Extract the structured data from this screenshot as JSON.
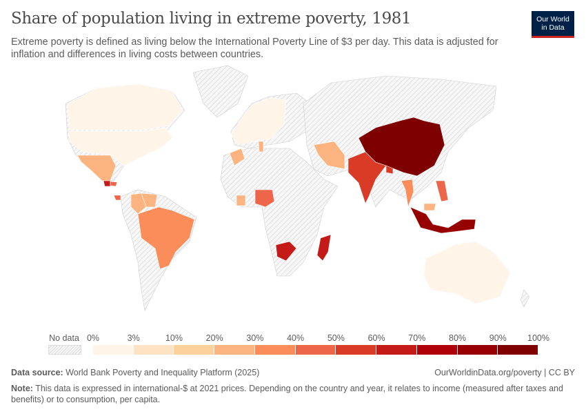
{
  "header": {
    "title": "Share of population living in extreme poverty, 1981",
    "subtitle": "Extreme poverty is defined as living below the International Poverty Line of $3 per day. This data is adjusted for inflation and differences in living costs between countries.",
    "logo_line1": "Our World",
    "logo_line2": "in Data"
  },
  "chart_data": {
    "type": "choropleth",
    "title": "Share of population living in extreme poverty, 1981",
    "legend": {
      "no_data_label": "No data",
      "bin_labels": [
        "0%",
        "3%",
        "10%",
        "20%",
        "30%",
        "40%",
        "50%",
        "60%",
        "70%",
        "80%",
        "90%",
        "100%"
      ],
      "bin_colors": [
        "#fef4e8",
        "#fde3c4",
        "#fcd19c",
        "#fbb47f",
        "#fb8d5a",
        "#ed6649",
        "#d93b27",
        "#c41b19",
        "#b00008",
        "#970000",
        "#7e0000"
      ],
      "no_data_pattern": "hatched-grey"
    },
    "countries": [
      {
        "name": "United States",
        "bin": "0-3%"
      },
      {
        "name": "Canada",
        "bin": "0-3%"
      },
      {
        "name": "Mexico",
        "bin": "20-30%"
      },
      {
        "name": "Guatemala",
        "bin": "60-70%"
      },
      {
        "name": "Honduras",
        "bin": "40-50%"
      },
      {
        "name": "Costa Rica",
        "bin": "40-50%"
      },
      {
        "name": "Colombia",
        "bin": "20-30%"
      },
      {
        "name": "Venezuela",
        "bin": "20-30%"
      },
      {
        "name": "Brazil",
        "bin": "30-40%"
      },
      {
        "name": "Western Europe",
        "bin": "0-3%"
      },
      {
        "name": "Morocco",
        "bin": "20-30%"
      },
      {
        "name": "Tunisia",
        "bin": "20-30%"
      },
      {
        "name": "Côte d'Ivoire",
        "bin": "20-30%"
      },
      {
        "name": "Nigeria",
        "bin": "40-50%"
      },
      {
        "name": "Botswana",
        "bin": "60-70%"
      },
      {
        "name": "Madagascar",
        "bin": "60-70%"
      },
      {
        "name": "Iran",
        "bin": "20-30%"
      },
      {
        "name": "India",
        "bin": "50-60%"
      },
      {
        "name": "Bangladesh",
        "bin": "50-60%"
      },
      {
        "name": "China",
        "bin": "90-100%"
      },
      {
        "name": "Thailand",
        "bin": "30-40%"
      },
      {
        "name": "Philippines",
        "bin": "40-50%"
      },
      {
        "name": "Malaysia",
        "bin": "20-30%"
      },
      {
        "name": "Indonesia",
        "bin": "80-90%"
      },
      {
        "name": "Australia",
        "bin": "0-3%"
      }
    ]
  },
  "footer": {
    "source_label": "Data source:",
    "source_text": "World Bank Poverty and Inequality Platform (2025)",
    "link": "OurWorldinData.org/poverty | CC BY",
    "note_label": "Note:",
    "note_text": "This data is expressed in international-$ at 2021 prices. Depending on the country and year, it relates to income (measured after taxes and benefits) or to consumption, per capita."
  }
}
